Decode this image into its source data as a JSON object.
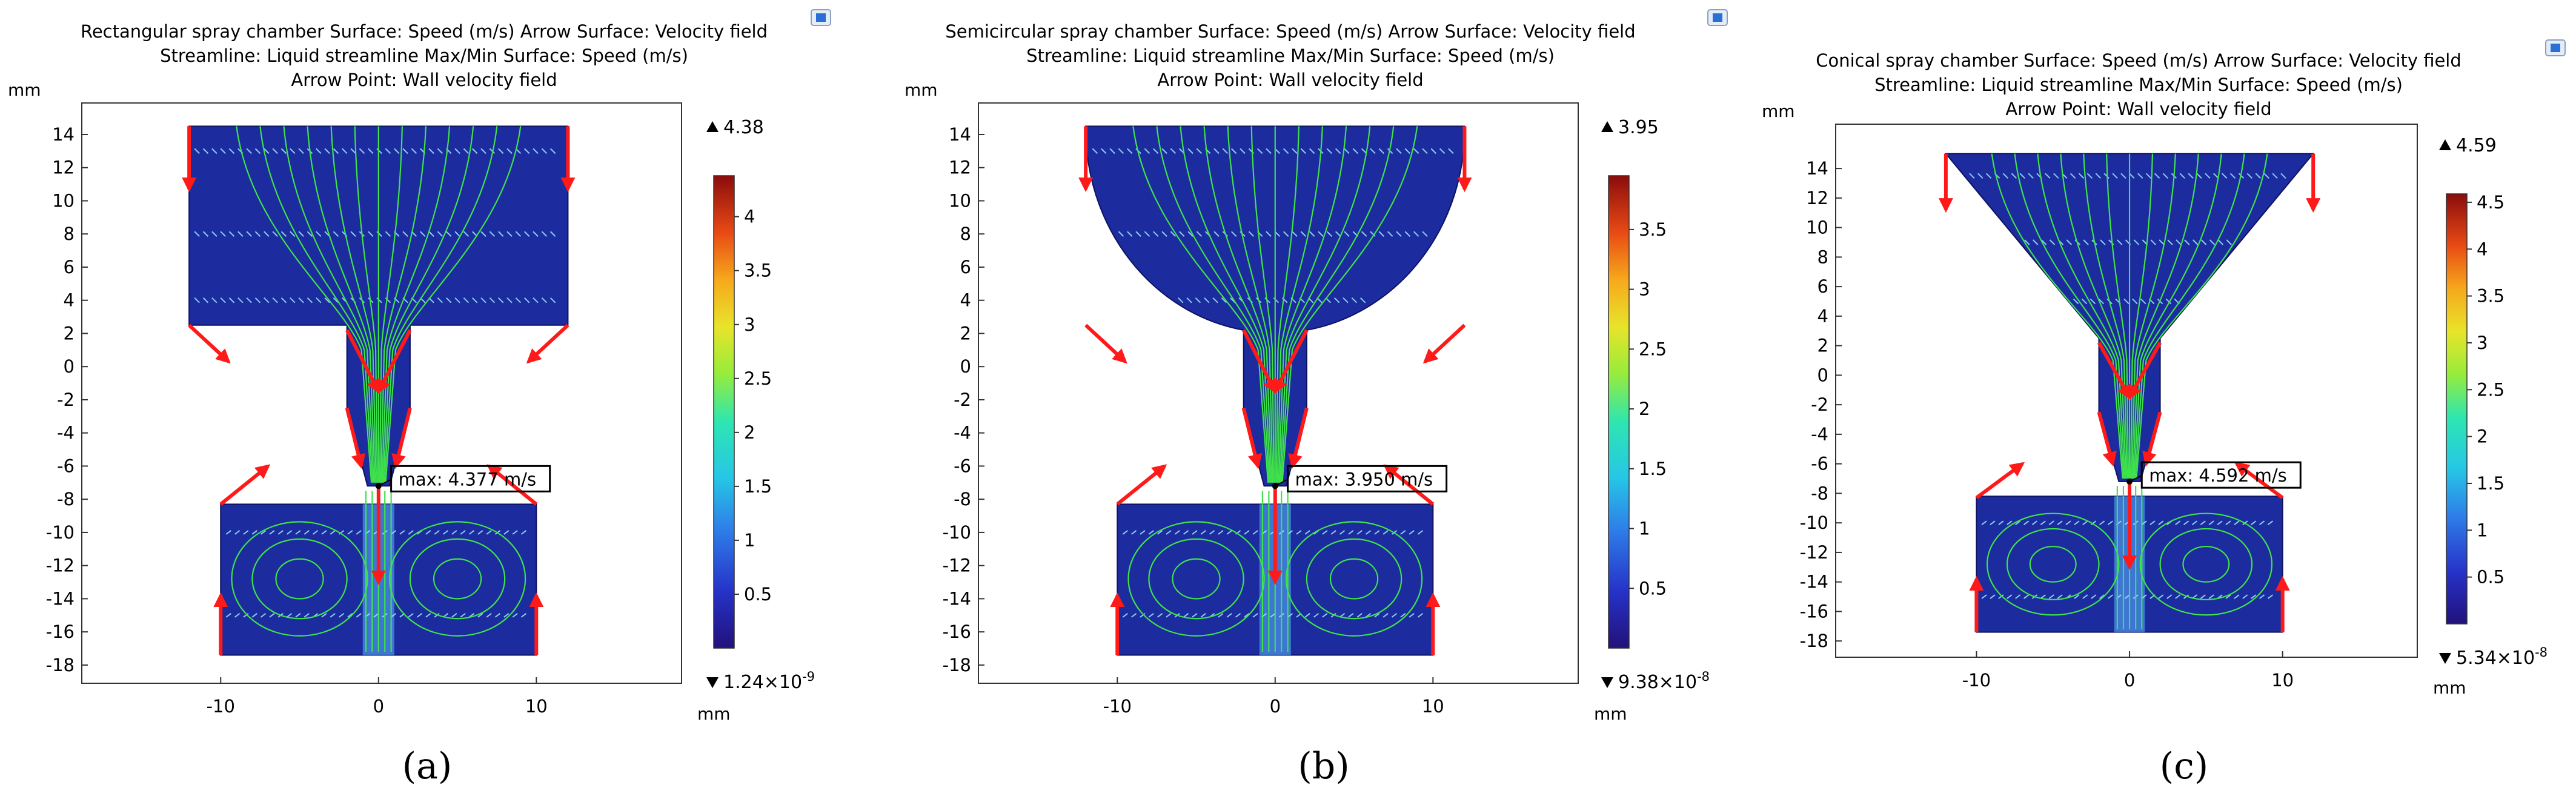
{
  "panels": [
    {
      "id": "a",
      "title_lines": [
        "Rectangular spray chamber Surface: Speed (m/s)  Arrow Surface: Velocity field",
        "Streamline: Liquid streamline  Max/Min Surface: Speed (m/s)",
        "Arrow Point: Wall velocity field"
      ],
      "y_unit": "mm",
      "x_unit": "mm",
      "y_ticks": [
        "14",
        "12",
        "10",
        "8",
        "6",
        "4",
        "2",
        "0",
        "-2",
        "-4",
        "-6",
        "-8",
        "-10",
        "-12",
        "-14",
        "-16",
        "-18"
      ],
      "x_ticks": [
        "-10",
        "0",
        "10"
      ],
      "colorbar_max": "4.38",
      "colorbar_min_mantissa": "1.24",
      "colorbar_min_exp": "-9",
      "colorbar_ticks": [
        "4",
        "3.5",
        "3",
        "2.5",
        "2",
        "1.5",
        "1",
        "0.5"
      ],
      "max_label": "max: 4.377 m/s",
      "caption": "(a)",
      "chamber_shape": "rectangular",
      "ticon": "settings-icon"
    },
    {
      "id": "b",
      "title_lines": [
        "Semicircular spray chamber Surface: Speed (m/s)  Arrow Surface: Velocity field",
        "Streamline: Liquid streamline  Max/Min Surface: Speed (m/s)",
        "Arrow Point: Wall velocity field"
      ],
      "y_unit": "mm",
      "x_unit": "mm",
      "y_ticks": [
        "14",
        "12",
        "10",
        "8",
        "6",
        "4",
        "2",
        "0",
        "-2",
        "-4",
        "-6",
        "-8",
        "-10",
        "-12",
        "-14",
        "-16",
        "-18"
      ],
      "x_ticks": [
        "-10",
        "0",
        "10"
      ],
      "colorbar_max": "3.95",
      "colorbar_min_mantissa": "9.38",
      "colorbar_min_exp": "-8",
      "colorbar_ticks": [
        "3.5",
        "3",
        "2.5",
        "2",
        "1.5",
        "1",
        "0.5"
      ],
      "max_label": "max: 3.950 m/s",
      "caption": "(b)",
      "chamber_shape": "semicircular",
      "ticon": "settings-icon"
    },
    {
      "id": "c",
      "title_lines": [
        "Conical spray chamber Surface: Speed (m/s)  Arrow Surface: Velocity field",
        "Streamline: Liquid streamline  Max/Min Surface: Speed (m/s)",
        "Arrow Point: Wall velocity field"
      ],
      "y_unit": "mm",
      "x_unit": "mm",
      "y_ticks": [
        "14",
        "12",
        "10",
        "8",
        "6",
        "4",
        "2",
        "0",
        "-2",
        "-4",
        "-6",
        "-8",
        "-10",
        "-12",
        "-14",
        "-16",
        "-18"
      ],
      "x_ticks": [
        "-10",
        "0",
        "10"
      ],
      "colorbar_max": "4.59",
      "colorbar_min_mantissa": "5.34",
      "colorbar_min_exp": "-8",
      "colorbar_ticks": [
        "4.5",
        "4",
        "3.5",
        "3",
        "2.5",
        "2",
        "1.5",
        "1",
        "0.5"
      ],
      "max_label": "max: 4.592 m/s",
      "caption": "(c)",
      "chamber_shape": "conical",
      "ticon": "settings-icon"
    }
  ],
  "colors": {
    "field": "#1c2b9e",
    "field_dark": "#161f7a",
    "streamline": "#3ee24a",
    "arrow": "#ff1a1a",
    "vector": "#9fe8ff",
    "jet": "#5ab4ff"
  }
}
